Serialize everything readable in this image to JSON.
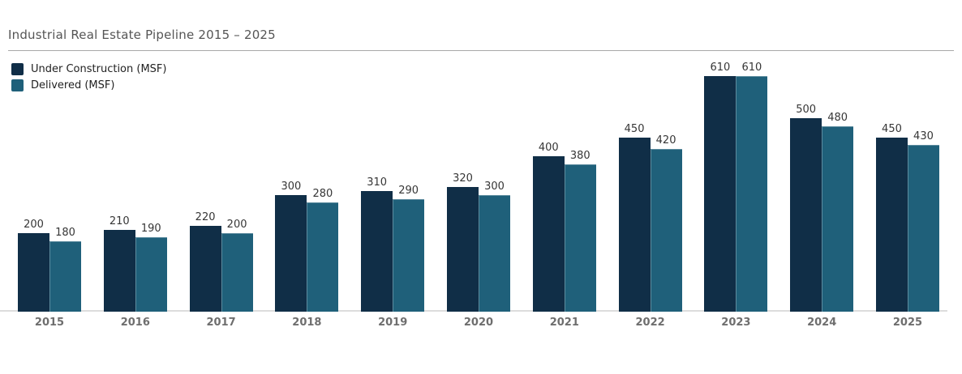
{
  "page": {
    "title": "Industrial Real Estate Pipeline 2015 – 2025"
  },
  "chart_data": {
    "type": "bar",
    "title": "Industrial Real Estate Pipeline 2015 – 2025",
    "categories": [
      "2015",
      "2016",
      "2017",
      "2018",
      "2019",
      "2020",
      "2021",
      "2022",
      "2023",
      "2024",
      "2025"
    ],
    "series": [
      {
        "name": "Under Construction (MSF)",
        "color": "#102e47",
        "values": [
          200,
          210,
          220,
          300,
          310,
          320,
          400,
          450,
          610,
          500,
          450
        ]
      },
      {
        "name": "Delivered (MSF)",
        "color": "#1f607a",
        "values": [
          180,
          190,
          200,
          280,
          290,
          300,
          380,
          420,
          610,
          480,
          430
        ]
      }
    ],
    "xlabel": "",
    "ylabel": "",
    "ylim": [
      0,
      610
    ],
    "value_labels_shown": true,
    "grid": false,
    "legend_position": "top-left"
  },
  "colors": {
    "series_under_construction": "#102e47",
    "series_delivered": "#1f607a",
    "title_text": "#555555",
    "legend_text": "#222222",
    "value_label_text": "#363636",
    "axis_label_text": "#6e6e6e",
    "title_rule": "#a9a9a9",
    "axis_line": "#dcdcdc",
    "background": "#ffffff"
  }
}
